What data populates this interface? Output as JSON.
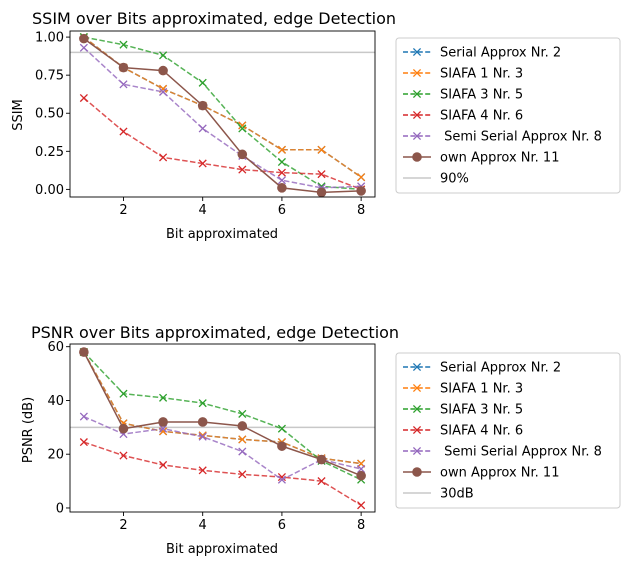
{
  "chart_data": [
    {
      "type": "line",
      "title": "SSIM over Bits approximated, edge Detection",
      "xlabel": "Bit approximated",
      "ylabel": "SSIM",
      "x": [
        1,
        2,
        3,
        4,
        5,
        6,
        7,
        8
      ],
      "xlim": [
        0.65,
        8.35
      ],
      "ylim": [
        -0.05,
        1.04
      ],
      "xticks": [
        2,
        4,
        6,
        8
      ],
      "xtick_labels": [
        "2",
        "4",
        "6",
        "8"
      ],
      "yticks": [
        0,
        0.25,
        0.5,
        0.75,
        1.0
      ],
      "ytick_labels": [
        "0.00",
        "0.25",
        "0.50",
        "0.75",
        "1.00"
      ],
      "grid": false,
      "legend_position": "outside-right",
      "reference_line": {
        "value": 0.9,
        "label": "90%",
        "color": "#c8c8c8"
      },
      "series": [
        {
          "name": "Serial Approx Nr. 2",
          "color": "#1f77b4",
          "style": "dashed",
          "marker": "x",
          "values": [
            1.0,
            0.8,
            0.66,
            0.55,
            0.42,
            0.26,
            0.26,
            0.08
          ]
        },
        {
          "name": "SIAFA 1 Nr. 3",
          "color": "#ff7f0e",
          "style": "dashed",
          "marker": "x",
          "values": [
            1.0,
            0.8,
            0.66,
            0.55,
            0.42,
            0.26,
            0.26,
            0.08
          ]
        },
        {
          "name": "SIAFA 3 Nr. 5",
          "color": "#2ca02c",
          "style": "dashed",
          "marker": "x",
          "values": [
            1.0,
            0.95,
            0.88,
            0.7,
            0.4,
            0.18,
            0.02,
            0.0
          ]
        },
        {
          "name": "SIAFA 4 Nr. 6",
          "color": "#d62728",
          "style": "dashed",
          "marker": "x",
          "values": [
            0.6,
            0.38,
            0.21,
            0.17,
            0.13,
            0.11,
            0.1,
            0.0
          ]
        },
        {
          "name": " Semi Serial Approx Nr. 8",
          "color": "#9467bd",
          "style": "dashed",
          "marker": "x",
          "values": [
            0.93,
            0.69,
            0.64,
            0.4,
            0.22,
            0.06,
            0.01,
            0.02
          ]
        },
        {
          "name": "own Approx Nr. 11",
          "color": "#8c564b",
          "style": "solid",
          "marker": "o",
          "values": [
            0.99,
            0.8,
            0.78,
            0.55,
            0.23,
            0.01,
            -0.02,
            -0.01
          ]
        }
      ]
    },
    {
      "type": "line",
      "title": "PSNR over Bits approximated, edge Detection",
      "xlabel": "Bit approximated",
      "ylabel": "PSNR (dB)",
      "x": [
        1,
        2,
        3,
        4,
        5,
        6,
        7,
        8
      ],
      "xlim": [
        0.65,
        8.35
      ],
      "ylim": [
        -1.5,
        61
      ],
      "xticks": [
        2,
        4,
        6,
        8
      ],
      "xtick_labels": [
        "2",
        "4",
        "6",
        "8"
      ],
      "yticks": [
        0,
        20,
        40,
        60
      ],
      "ytick_labels": [
        "0",
        "20",
        "40",
        "60"
      ],
      "grid": false,
      "legend_position": "outside-right",
      "reference_line": {
        "value": 30,
        "label": "30dB",
        "color": "#c8c8c8"
      },
      "series": [
        {
          "name": "Serial Approx Nr. 2",
          "color": "#1f77b4",
          "style": "dashed",
          "marker": "x",
          "values": [
            58,
            31.5,
            28.5,
            27,
            25.5,
            24.5,
            18.5,
            16.5
          ]
        },
        {
          "name": "SIAFA 1 Nr. 3",
          "color": "#ff7f0e",
          "style": "dashed",
          "marker": "x",
          "values": [
            58,
            31.5,
            28.5,
            27,
            25.5,
            24.5,
            18.5,
            16.5
          ]
        },
        {
          "name": "SIAFA 3 Nr. 5",
          "color": "#2ca02c",
          "style": "dashed",
          "marker": "x",
          "values": [
            58,
            42.5,
            41,
            39,
            35,
            29.5,
            17.5,
            10.5
          ]
        },
        {
          "name": "SIAFA 4 Nr. 6",
          "color": "#d62728",
          "style": "dashed",
          "marker": "x",
          "values": [
            24.5,
            19.5,
            16,
            14,
            12.5,
            11.5,
            10,
            1
          ]
        },
        {
          "name": " Semi Serial Approx Nr. 8",
          "color": "#9467bd",
          "style": "dashed",
          "marker": "x",
          "values": [
            34,
            27.5,
            29.5,
            26.5,
            21,
            10.5,
            18,
            14.5
          ]
        },
        {
          "name": "own Approx Nr. 11",
          "color": "#8c564b",
          "style": "solid",
          "marker": "o",
          "values": [
            58,
            29.5,
            32,
            32,
            30.5,
            23,
            18,
            12
          ]
        }
      ]
    }
  ]
}
